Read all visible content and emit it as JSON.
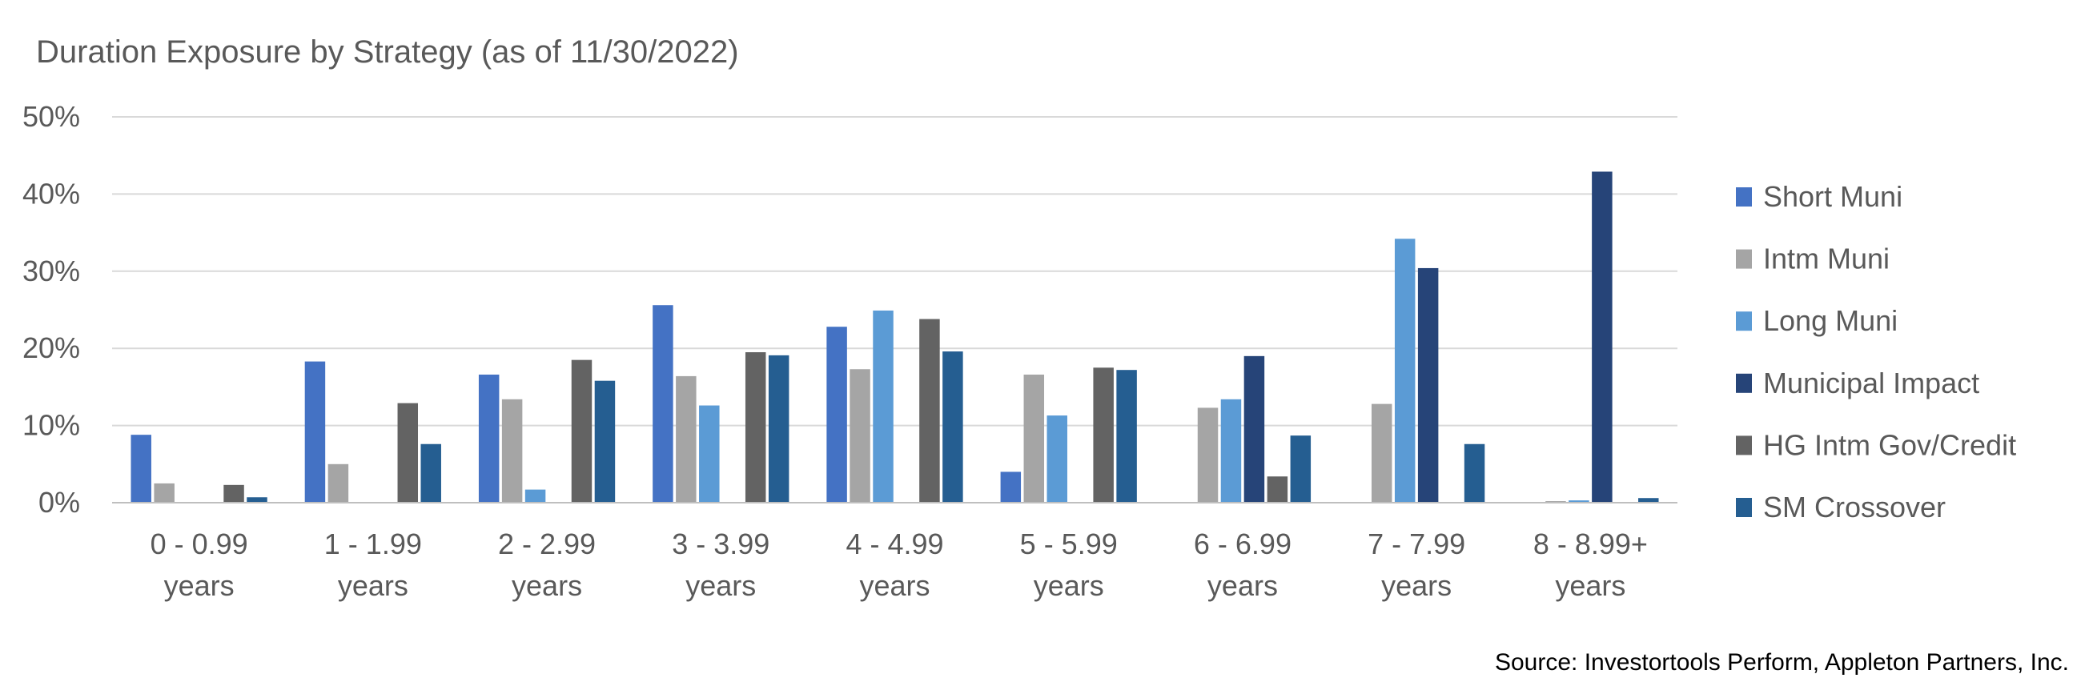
{
  "chart_data": {
    "type": "bar",
    "title": "Duration Exposure by Strategy (as of 11/30/2022)",
    "categories": [
      [
        "0 - 0.99",
        "years"
      ],
      [
        "1 - 1.99",
        "years"
      ],
      [
        "2 - 2.99",
        "years"
      ],
      [
        "3 - 3.99",
        "years"
      ],
      [
        "4 - 4.99",
        "years"
      ],
      [
        "5 - 5.99",
        "years"
      ],
      [
        "6 - 6.99",
        "years"
      ],
      [
        "7 - 7.99",
        "years"
      ],
      [
        "8 - 8.99+",
        "years"
      ]
    ],
    "ylim": [
      0,
      50
    ],
    "yticks": [
      0,
      10,
      20,
      30,
      40,
      50
    ],
    "ytick_labels": [
      "0%",
      "10%",
      "20%",
      "30%",
      "40%",
      "50%"
    ],
    "grid": true,
    "legend_position": "right",
    "series": [
      {
        "name": "Short Muni",
        "color": "#4472c4",
        "values": [
          8.8,
          18.3,
          16.6,
          25.6,
          22.8,
          4.0,
          0,
          0,
          0
        ]
      },
      {
        "name": "Intm Muni",
        "color": "#a5a5a5",
        "values": [
          2.5,
          5.0,
          13.4,
          16.4,
          17.3,
          16.6,
          12.3,
          12.8,
          0.2
        ]
      },
      {
        "name": "Long Muni",
        "color": "#5b9bd5",
        "values": [
          0,
          0,
          1.7,
          12.6,
          24.9,
          11.3,
          13.4,
          34.2,
          0.3
        ]
      },
      {
        "name": "Municipal Impact",
        "color": "#264478",
        "values": [
          0,
          0,
          0,
          0,
          0,
          0,
          19.0,
          30.4,
          42.9
        ]
      },
      {
        "name": "HG Intm Gov/Credit",
        "color": "#636363",
        "values": [
          2.3,
          12.9,
          18.5,
          19.5,
          23.8,
          17.5,
          3.4,
          0,
          0
        ]
      },
      {
        "name": "SM Crossover",
        "color": "#255e91",
        "values": [
          0.7,
          7.6,
          15.8,
          19.1,
          19.6,
          17.2,
          8.7,
          7.6,
          0.6
        ]
      }
    ]
  },
  "source_note": "Source:  Investortools Perform, Appleton Partners, Inc."
}
